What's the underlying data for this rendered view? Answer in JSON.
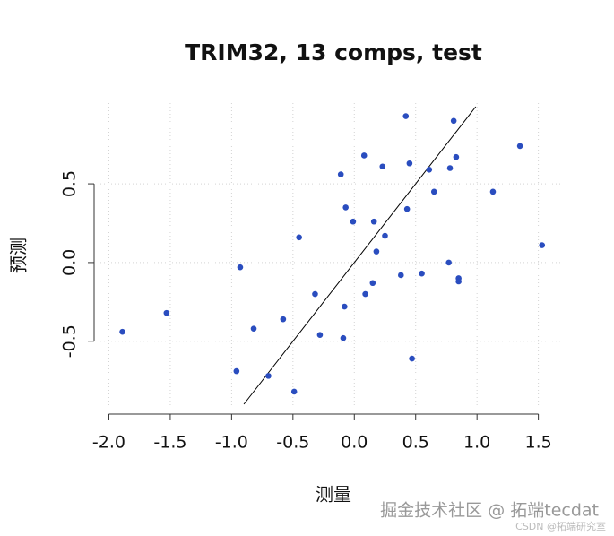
{
  "chart_data": {
    "type": "scatter",
    "title": "TRIM32, 13 comps, test",
    "x_label": "测量",
    "y_label": "预测",
    "x": [
      -1.89,
      -1.53,
      -0.93,
      -0.96,
      -0.82,
      -0.7,
      -0.58,
      -0.49,
      -0.45,
      -0.32,
      -0.28,
      -0.11,
      -0.09,
      -0.08,
      -0.07,
      -0.01,
      0.08,
      0.09,
      0.15,
      0.16,
      0.18,
      0.23,
      0.25,
      0.38,
      0.42,
      0.43,
      0.45,
      0.47,
      0.55,
      0.61,
      0.65,
      0.77,
      0.78,
      0.81,
      0.83,
      0.85,
      0.85,
      1.13,
      1.35,
      1.53
    ],
    "values": [
      -0.44,
      -0.32,
      -0.03,
      -0.69,
      -0.42,
      -0.72,
      -0.36,
      -0.82,
      0.16,
      -0.2,
      -0.46,
      0.56,
      -0.48,
      -0.28,
      0.35,
      0.26,
      0.68,
      -0.2,
      -0.13,
      0.26,
      0.07,
      0.61,
      0.17,
      -0.08,
      0.93,
      0.34,
      0.63,
      -0.61,
      -0.07,
      0.59,
      0.45,
      0.0,
      0.6,
      0.9,
      0.67,
      -0.1,
      -0.12,
      0.45,
      0.74,
      0.11
    ],
    "color": "#2a4dbf",
    "reference_line": {
      "slope": 1,
      "intercept": 0
    },
    "xlim": [
      -2.04,
      1.7
    ],
    "ylim": [
      -0.9,
      0.99
    ],
    "xticks": [
      {
        "value": -2,
        "label": "-2.0"
      },
      {
        "value": -1.5,
        "label": "-1.5"
      },
      {
        "value": -1,
        "label": "-1.0"
      },
      -0.5,
      {
        "value": 0,
        "label": "0.0"
      },
      0.5,
      {
        "value": 1,
        "label": "1.0"
      },
      1.5
    ],
    "yticks": [
      -0.5,
      {
        "value": 0,
        "label": "0.0"
      },
      0.5
    ],
    "grid": true
  },
  "watermark": {
    "main": "掘金技术社区 @ 拓端tecdat",
    "sub": "CSDN @拓端研究室"
  }
}
